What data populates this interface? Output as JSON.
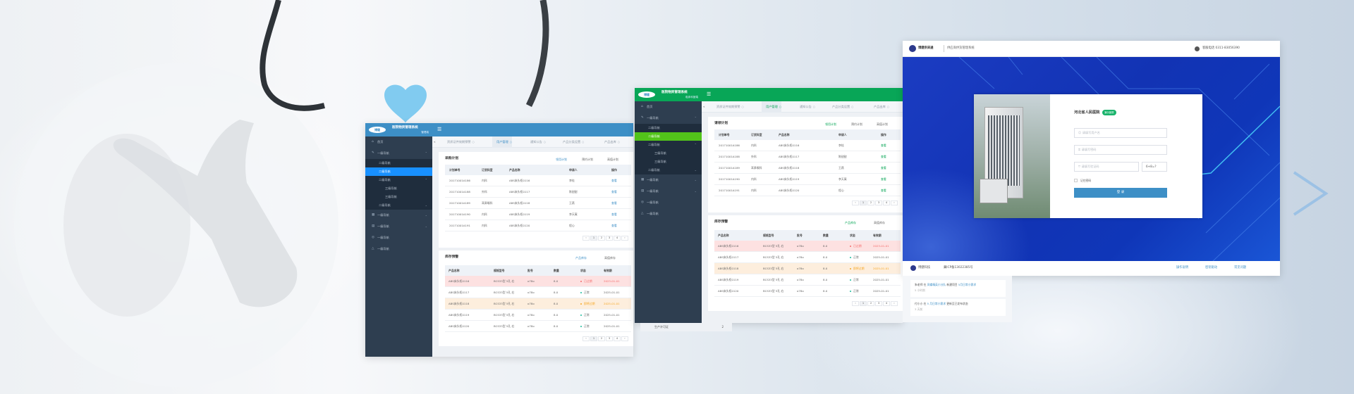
{
  "panels": [
    {
      "id": "admin",
      "header_color": "#3d8fc6",
      "active_color": "#1890ff",
      "logo": "博健",
      "system_title": "医院物资管理系统",
      "subtitle": "管理端",
      "tabs": [
        {
          "label": "资质证件效期预警",
          "active": false
        },
        {
          "label": "用户管理",
          "active": true
        },
        {
          "label": "通知公告",
          "active": false
        },
        {
          "label": "产品分类设置",
          "active": false
        },
        {
          "label": "产品出库",
          "active": false
        }
      ],
      "sidebar": [
        {
          "label": "首页",
          "level": 0,
          "icon": "home-icon",
          "caret": ""
        },
        {
          "label": "一级导航",
          "level": 0,
          "icon": "edit-icon",
          "caret": "up"
        },
        {
          "label": "二级导航",
          "level": 1,
          "caret": ""
        },
        {
          "label": "二级导航",
          "level": 1,
          "caret": "",
          "active": true
        },
        {
          "label": "二级导航",
          "level": 1,
          "caret": "up"
        },
        {
          "label": "三级导航",
          "level": 2,
          "caret": ""
        },
        {
          "label": "三级导航",
          "level": 2,
          "caret": ""
        },
        {
          "label": "二级导航",
          "level": 1,
          "caret": "down"
        },
        {
          "label": "一级导航",
          "level": 0,
          "icon": "grid-icon",
          "caret": "down"
        },
        {
          "label": "一级导航",
          "level": 0,
          "icon": "table-icon",
          "caret": "down"
        },
        {
          "label": "一级导航",
          "level": 0,
          "icon": "check-circle-icon",
          "caret": ""
        },
        {
          "label": "一级导航",
          "level": 0,
          "icon": "warning-icon",
          "caret": ""
        }
      ],
      "plan_card": {
        "title": "采购计划",
        "tabs": [
          {
            "label": "领用计划",
            "active": true
          },
          {
            "label": "预约计划",
            "active": false
          },
          {
            "label": "高值计划",
            "active": false
          }
        ],
        "columns": [
          "计划单号",
          "订货科室",
          "产品名称",
          "申请人",
          "操作"
        ],
        "rows": [
          [
            "20171001A186",
            "内科",
            "ABS床头柜0116",
            "李桂",
            "查看"
          ],
          [
            "20171001A188",
            "外科",
            "ABS床头柜0117",
            "陈甜甜",
            "查看"
          ],
          [
            "20171001A189",
            "耳鼻喉科",
            "ABS床头柜0118",
            "王燕",
            "查看"
          ],
          [
            "20171001A190",
            "内科",
            "ABS床头柜0119",
            "李天寓",
            "查看"
          ],
          [
            "20171001A191",
            "内科",
            "ABS床头柜0120",
            "程心",
            "查看"
          ]
        ],
        "pagination": [
          "‹",
          "1",
          "2",
          "3",
          "4",
          "›"
        ]
      },
      "stock_card": {
        "title": "库存预警",
        "tabs": [
          {
            "label": "产品库存",
            "active": true
          },
          {
            "label": "高值库存",
            "active": false
          }
        ],
        "columns": [
          "产品名称",
          "规格型号",
          "批号",
          "数量",
          "状态",
          "有效期"
        ],
        "rows": [
          {
            "cells": [
              "ABS床头柜0116",
              "BCS33型 5孔 右",
              "o78o",
              "8.0",
              "已过期",
              "2023-01-01"
            ],
            "status": "expired"
          },
          {
            "cells": [
              "ABS床头柜0117",
              "BCS33型 5孔 右",
              "o78o",
              "8.0",
              "正常",
              "2025-01-01"
            ],
            "status": "normal"
          },
          {
            "cells": [
              "ABS床头柜0118",
              "BCS33型 5孔 右",
              "o78o",
              "8.0",
              "即将过期",
              "2025-01-01"
            ],
            "status": "warning"
          },
          {
            "cells": [
              "ABS床头柜0119",
              "BCS33型 5孔 右",
              "o78o",
              "8.0",
              "正常",
              "2025-01-01"
            ],
            "status": "normal"
          },
          {
            "cells": [
              "ABS床头柜0120",
              "BCS33型 5孔 右",
              "o78o",
              "8.0",
              "正常",
              "2025-01-01"
            ],
            "status": "normal"
          }
        ],
        "pagination": [
          "‹",
          "1",
          "2",
          "3",
          "4",
          "›"
        ]
      }
    },
    {
      "id": "clinic",
      "header_color": "#08a657",
      "active_color": "#52c41a",
      "logo": "博健",
      "system_title": "医院物资管理系统",
      "subtitle": "临床科室端",
      "tabs": [
        {
          "label": "资质证件效期预警",
          "active": false
        },
        {
          "label": "用户管理",
          "active": true
        },
        {
          "label": "通知公告",
          "active": false
        },
        {
          "label": "产品分类设置",
          "active": false
        },
        {
          "label": "产品出库",
          "active": false
        }
      ],
      "sidebar": [
        {
          "label": "首页",
          "level": 0,
          "icon": "home-icon",
          "caret": ""
        },
        {
          "label": "一级导航",
          "level": 0,
          "icon": "edit-icon",
          "caret": "up"
        },
        {
          "label": "二级导航",
          "level": 1,
          "caret": ""
        },
        {
          "label": "二级导航",
          "level": 1,
          "caret": "",
          "active": true
        },
        {
          "label": "二级导航",
          "level": 1,
          "caret": "up"
        },
        {
          "label": "三级导航",
          "level": 2,
          "caret": ""
        },
        {
          "label": "三级导航",
          "level": 2,
          "caret": ""
        },
        {
          "label": "二级导航",
          "level": 1,
          "caret": "down"
        },
        {
          "label": "一级导航",
          "level": 0,
          "icon": "grid-icon",
          "caret": "down"
        },
        {
          "label": "一级导航",
          "level": 0,
          "icon": "table-icon",
          "caret": "down"
        },
        {
          "label": "一级导航",
          "level": 0,
          "icon": "check-circle-icon",
          "caret": ""
        },
        {
          "label": "一级导航",
          "level": 0,
          "icon": "warning-icon",
          "caret": ""
        }
      ],
      "plan_card": {
        "title": "请领计划",
        "tabs": [
          {
            "label": "领用计划",
            "active": true
          },
          {
            "label": "预约计划",
            "active": false
          },
          {
            "label": "高值计划",
            "active": false
          }
        ],
        "columns": [
          "计划单号",
          "订货科室",
          "产品名称",
          "申请人",
          "操作"
        ],
        "rows": [
          [
            "20171001A186",
            "内科",
            "ABS床头柜0116",
            "李桂",
            "查看"
          ],
          [
            "20171001A188",
            "外科",
            "ABS床头柜0117",
            "陈甜甜",
            "查看"
          ],
          [
            "20171001A189",
            "耳鼻喉科",
            "ABS床头柜0118",
            "王燕",
            "查看"
          ],
          [
            "20171001A190",
            "内科",
            "ABS床头柜0119",
            "李天寓",
            "查看"
          ],
          [
            "20171001A191",
            "内科",
            "ABS床头柜0120",
            "程心",
            "查看"
          ]
        ],
        "pagination": [
          "‹",
          "1",
          "2",
          "3",
          "4",
          "›"
        ]
      },
      "stock_card": {
        "title": "库存预警",
        "tabs": [
          {
            "label": "产品库存",
            "active": true
          },
          {
            "label": "高值库存",
            "active": false
          }
        ],
        "columns": [
          "产品名称",
          "规格型号",
          "批号",
          "数量",
          "状态",
          "有效期"
        ],
        "rows": [
          {
            "cells": [
              "ABS床头柜0116",
              "BCS33型 5孔 右",
              "o78o",
              "8.0",
              "已过期",
              "2023-01-01"
            ],
            "status": "expired"
          },
          {
            "cells": [
              "ABS床头柜0117",
              "BCS33型 5孔 右",
              "o78o",
              "8.0",
              "正常",
              "2025-01-01"
            ],
            "status": "normal"
          },
          {
            "cells": [
              "ABS床头柜0118",
              "BCS33型 5孔 右",
              "o78o",
              "8.0",
              "即将过期",
              "2025-01-01"
            ],
            "status": "warning"
          },
          {
            "cells": [
              "ABS床头柜0119",
              "BCS33型 5孔 右",
              "o78o",
              "8.0",
              "正常",
              "2025-01-01"
            ],
            "status": "normal"
          },
          {
            "cells": [
              "ABS床头柜0120",
              "BCS33型 5孔 右",
              "o78o",
              "8.0",
              "正常",
              "2025-01-01"
            ],
            "status": "normal"
          }
        ],
        "pagination": [
          "‹",
          "1",
          "2",
          "3",
          "4",
          "›"
        ]
      },
      "below_card": {
        "label": "生产许可证",
        "count": "2"
      }
    }
  ],
  "status_colors": {
    "expired": "#f56c6c",
    "warning": "#f5a623",
    "normal": "#1abc9c"
  },
  "login": {
    "brand": "博健供采通",
    "system_name": "供应商供货管理系统",
    "phone_label": "客服电话 0311-83056390",
    "hospital": "河北省人民医院",
    "badge": "演示医院",
    "username_placeholder": "请填写用户名",
    "password_placeholder": "请填写密码",
    "captcha_placeholder": "请填写验证码",
    "captcha_question": "6+8=?",
    "remember_label": "记住密码",
    "login_button": "登 录",
    "footer_company": "博健科技",
    "footer_icp": "冀ICP备13022385号",
    "footer_links": [
      "操作说明",
      "密钥驱动",
      "常见问题"
    ]
  },
  "activity": [
    {
      "user": "朱老师",
      "pre": "在",
      "target": "凤蝶精英小分队",
      "action": "新建项目",
      "item": "5月日常小需求",
      "time": "5 小时前"
    },
    {
      "user": "付小小",
      "pre": "在",
      "target": "5 月日常小需求",
      "action": "更新至已发布状态",
      "item": "",
      "time": "3 天前"
    }
  ]
}
